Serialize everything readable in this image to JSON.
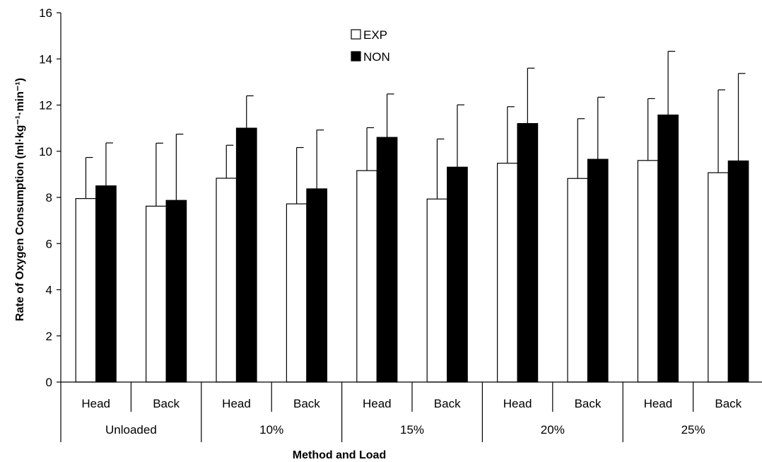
{
  "chart_data": {
    "type": "bar",
    "ylabel": "Rate of Oxygen Consumption (ml·kg⁻¹·min⁻¹)",
    "xlabel": "Method and Load",
    "ylim": [
      0,
      16
    ],
    "yticks": [
      0,
      2,
      4,
      6,
      8,
      10,
      12,
      14,
      16
    ],
    "grid": false,
    "legend_position": "top-center",
    "groups": [
      "Unloaded",
      "10%",
      "15%",
      "20%",
      "25%"
    ],
    "methods": [
      "Head",
      "Back"
    ],
    "categories": [
      "Unloaded Head",
      "Unloaded Back",
      "10% Head",
      "10% Back",
      "15% Head",
      "15% Back",
      "20% Head",
      "20% Back",
      "25% Head",
      "25% Back"
    ],
    "series": [
      {
        "name": "EXP",
        "fill": "#ffffff",
        "values": [
          7.95,
          7.62,
          8.83,
          7.72,
          9.16,
          7.93,
          9.48,
          8.82,
          9.6,
          9.07
        ],
        "error_upper": [
          9.73,
          10.35,
          10.26,
          10.16,
          11.02,
          10.53,
          11.93,
          11.41,
          12.28,
          12.66
        ]
      },
      {
        "name": "NON",
        "fill": "#000000",
        "values": [
          8.5,
          7.87,
          11.0,
          8.37,
          10.6,
          9.31,
          11.2,
          9.65,
          11.57,
          9.58
        ],
        "error_upper": [
          10.36,
          10.74,
          12.4,
          10.92,
          12.48,
          12.01,
          13.6,
          12.34,
          14.33,
          13.37
        ]
      }
    ]
  }
}
